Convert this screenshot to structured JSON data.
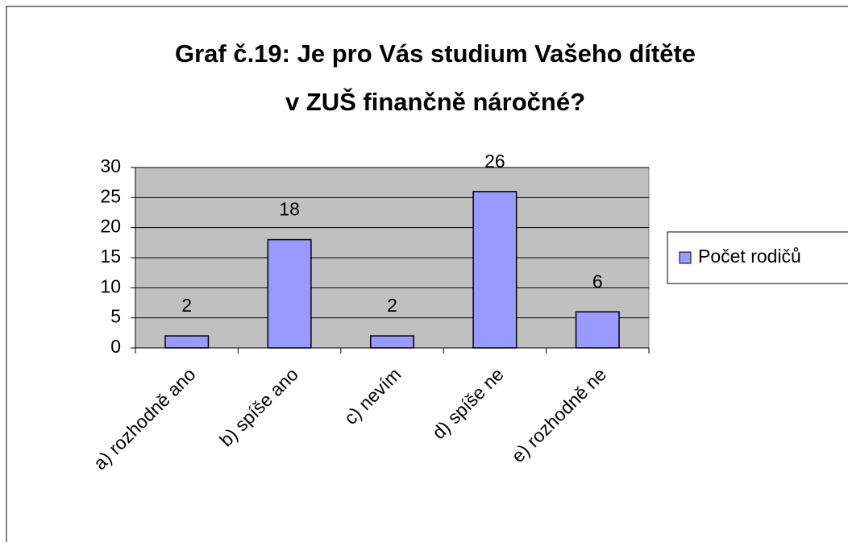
{
  "chart_data": {
    "type": "bar",
    "title": [
      "Graf č.19: Je pro Vás studium Vašeho dítěte",
      "v ZUŠ finančně náročné?"
    ],
    "categories": [
      "a) rozhodně ano",
      "b) spíše ano",
      "c) nevím",
      "d) spíše ne",
      "e) rozhodně ne"
    ],
    "series": [
      {
        "name": "Počet rodičů",
        "color": "#9999ff",
        "values": [
          2,
          18,
          2,
          26,
          6
        ]
      }
    ],
    "ylim": [
      0,
      30
    ],
    "yticks": [
      0,
      5,
      10,
      15,
      20,
      25,
      30
    ],
    "grid": true,
    "legend": "right"
  }
}
